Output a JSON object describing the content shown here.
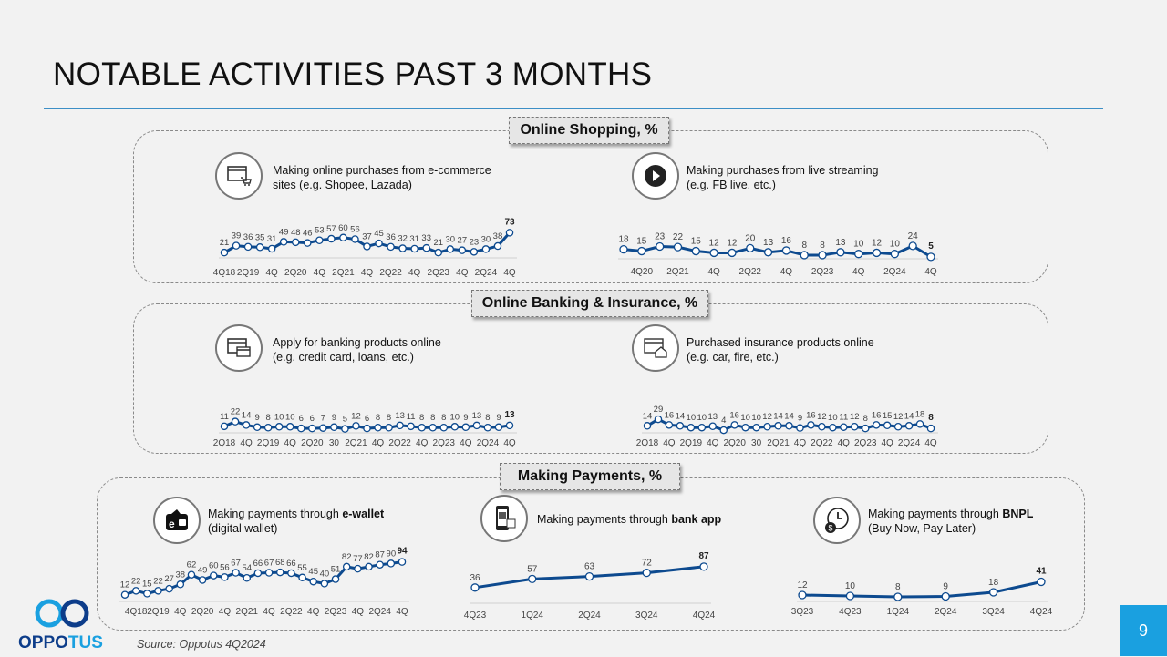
{
  "title": "NOTABLE ACTIVITIES PAST 3 MONTHS",
  "page_number": "9",
  "source": "Source: Oppotus 4Q2024",
  "logo_text": "OPPOTUS",
  "colors": {
    "line": "#0d4a8f",
    "accent": "#1aa0e0",
    "rule": "#3d8fc6"
  },
  "sections": [
    {
      "title": "Online Shopping, %"
    },
    {
      "title": "Online Banking & Insurance, %"
    },
    {
      "title": "Making Payments, %"
    }
  ],
  "items": [
    {
      "icon": "browser-cart-icon",
      "line1": "Making online purchases from e-commerce",
      "line2": "sites (e.g. Shopee, Lazada)"
    },
    {
      "icon": "play-icon",
      "line1": "Making purchases from live streaming",
      "line2": "(e.g. FB live, etc.)"
    },
    {
      "icon": "browser-card-icon",
      "line1": "Apply for banking products online",
      "line2": "(e.g. credit card, loans, etc.)"
    },
    {
      "icon": "browser-house-icon",
      "line1": "Purchased insurance products online",
      "line2": "(e.g. car, fire, etc.)"
    },
    {
      "icon": "e-wallet-icon",
      "line1_pre": "Making payments through ",
      "line1_bold": "e-wallet",
      "line2": "(digital wallet)"
    },
    {
      "icon": "phone-qr-icon",
      "line1_pre": "Making payments through ",
      "line1_bold": "bank app",
      "line2": ""
    },
    {
      "icon": "clock-money-icon",
      "line1_pre": "Making payments through ",
      "line1_bold": "BNPL",
      "line2": "(Buy Now, Pay Later)"
    }
  ],
  "chart_data": [
    {
      "type": "line",
      "section": "Online Shopping, %",
      "values": [
        21,
        39,
        36,
        35,
        31,
        49,
        48,
        46,
        53,
        57,
        60,
        56,
        37,
        45,
        36,
        32,
        31,
        33,
        21,
        30,
        27,
        23,
        30,
        38,
        73
      ],
      "x_labels": [
        "4Q18",
        "",
        "2Q19",
        "",
        "4Q",
        "",
        "2Q20",
        "",
        "4Q",
        "",
        "2Q21",
        "",
        "4Q",
        "",
        "2Q22",
        "",
        "4Q",
        "",
        "2Q23",
        "",
        "4Q",
        "",
        "2Q24",
        "",
        "4Q"
      ]
    },
    {
      "type": "line",
      "section": "Online Shopping, %",
      "values": [
        18,
        15,
        23,
        22,
        15,
        12,
        12,
        20,
        13,
        16,
        8,
        8,
        13,
        10,
        12,
        10,
        24,
        5
      ],
      "x_labels": [
        "",
        "4Q20",
        "",
        "2Q21",
        "",
        "4Q",
        "",
        "2Q22",
        "",
        "4Q",
        "",
        "2Q23",
        "",
        "4Q",
        "",
        "2Q24",
        "",
        "4Q"
      ]
    },
    {
      "type": "line",
      "section": "Online Banking & Insurance, %",
      "values": [
        11,
        22,
        14,
        9,
        8,
        10,
        10,
        6,
        6,
        7,
        9,
        5,
        12,
        6,
        8,
        8,
        13,
        11,
        8,
        8,
        8,
        10,
        9,
        13,
        8,
        9,
        13
      ],
      "x_labels": [
        "2Q18",
        "",
        "4Q",
        "",
        "2Q19",
        "",
        "4Q",
        "",
        "2Q20",
        "",
        "30",
        "",
        "2Q21",
        "",
        "4Q",
        "",
        "2Q22",
        "",
        "4Q",
        "",
        "2Q23",
        "",
        "4Q",
        "",
        "2Q24",
        "",
        "4Q"
      ]
    },
    {
      "type": "line",
      "section": "Online Banking & Insurance, %",
      "values": [
        14,
        29,
        16,
        14,
        10,
        10,
        13,
        4,
        16,
        10,
        10,
        12,
        14,
        14,
        9,
        16,
        12,
        10,
        11,
        12,
        8,
        16,
        15,
        12,
        14,
        18,
        8
      ],
      "x_labels": [
        "2Q18",
        "",
        "4Q",
        "",
        "2Q19",
        "",
        "4Q",
        "",
        "2Q20",
        "",
        "30",
        "",
        "2Q21",
        "",
        "4Q",
        "",
        "2Q22",
        "",
        "4Q",
        "",
        "2Q23",
        "",
        "4Q",
        "",
        "2Q24",
        "",
        "4Q"
      ]
    },
    {
      "type": "line",
      "section": "Making Payments, %",
      "values": [
        12,
        22,
        15,
        22,
        27,
        38,
        62,
        49,
        60,
        56,
        67,
        54,
        66,
        67,
        68,
        66,
        55,
        45,
        40,
        51,
        82,
        77,
        82,
        87,
        90,
        94
      ],
      "x_labels": [
        "",
        "4Q18",
        "",
        "2Q19",
        "",
        "4Q",
        "",
        "2Q20",
        "",
        "4Q",
        "",
        "2Q21",
        "",
        "4Q",
        "",
        "2Q22",
        "",
        "4Q",
        "",
        "2Q23",
        "",
        "4Q",
        "",
        "2Q24",
        "",
        "4Q"
      ]
    },
    {
      "type": "line",
      "section": "Making Payments, %",
      "values": [
        36,
        57,
        63,
        72,
        87
      ],
      "x_labels": [
        "4Q23",
        "1Q24",
        "2Q24",
        "3Q24",
        "4Q24"
      ]
    },
    {
      "type": "line",
      "section": "Making Payments, %",
      "values": [
        12,
        10,
        8,
        9,
        18,
        41
      ],
      "x_labels": [
        "3Q23",
        "4Q23",
        "1Q24",
        "2Q24",
        "3Q24",
        "4Q24"
      ]
    }
  ]
}
